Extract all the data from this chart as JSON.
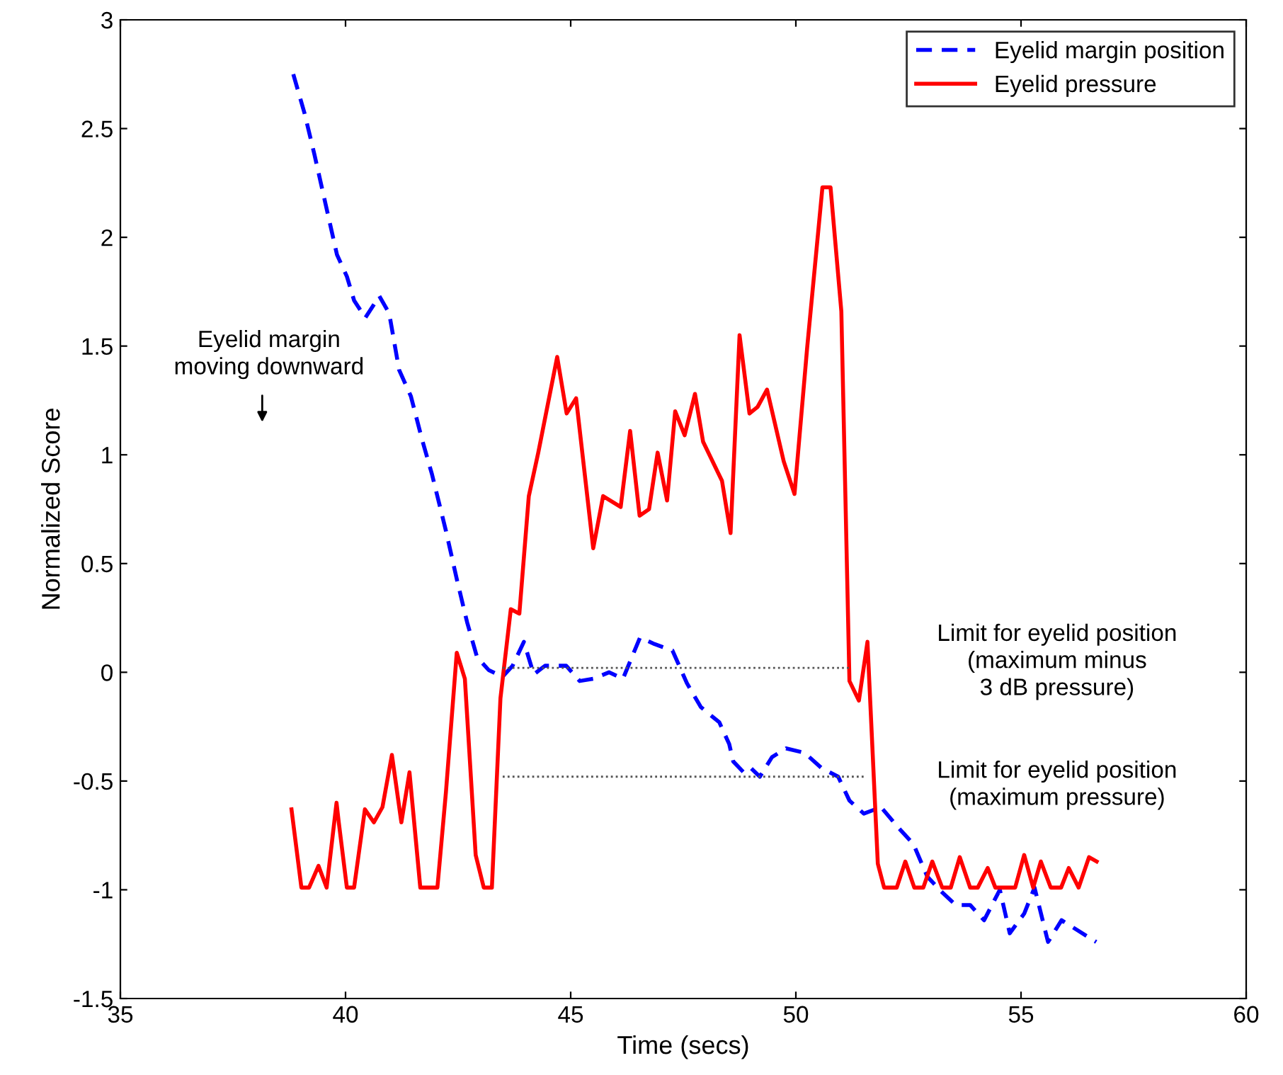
{
  "chart_data": {
    "type": "line",
    "xlabel": "Time (secs)",
    "ylabel": "Normalized Score",
    "xlim": [
      35,
      60
    ],
    "xticks": [
      35,
      40,
      45,
      50,
      55,
      60
    ],
    "ylim": [
      -1.5,
      3
    ],
    "yticks": [
      -1.5,
      -1,
      -0.5,
      0,
      0.5,
      1,
      1.5,
      2,
      2.5,
      3
    ],
    "grid": false,
    "legend": "top right",
    "marker": "none",
    "series": [
      {
        "name": "Eyelid margin position",
        "color": "#0000ff",
        "line_style": "dashed",
        "x": [
          38.84,
          39.09,
          39.31,
          39.56,
          39.81,
          40.03,
          40.19,
          40.44,
          40.75,
          40.97,
          41.19,
          41.45,
          41.7,
          41.92,
          42.23,
          42.48,
          42.7,
          42.92,
          43.18,
          43.49,
          43.71,
          43.96,
          44.18,
          44.43,
          44.9,
          45.2,
          45.5,
          45.85,
          46.16,
          46.54,
          46.86,
          47.26,
          47.58,
          47.89,
          48.3,
          48.52,
          48.61,
          48.84,
          49.0,
          49.2,
          49.47,
          49.78,
          50.19,
          50.57,
          50.94,
          51.19,
          51.51,
          51.89,
          52.3,
          52.61,
          52.92,
          53.24,
          53.55,
          53.87,
          54.18,
          54.53,
          54.75,
          55.07,
          55.3,
          55.6,
          55.9,
          56.67
        ],
        "values": [
          2.75,
          2.57,
          2.38,
          2.15,
          1.92,
          1.82,
          1.71,
          1.63,
          1.73,
          1.65,
          1.39,
          1.27,
          1.07,
          0.91,
          0.65,
          0.42,
          0.23,
          0.07,
          0.01,
          -0.02,
          0.03,
          0.14,
          -0.01,
          0.03,
          0.03,
          -0.04,
          -0.03,
          0.0,
          -0.03,
          0.16,
          0.13,
          0.1,
          -0.05,
          -0.16,
          -0.23,
          -0.33,
          -0.41,
          -0.46,
          -0.44,
          -0.48,
          -0.39,
          -0.35,
          -0.37,
          -0.44,
          -0.48,
          -0.59,
          -0.65,
          -0.62,
          -0.72,
          -0.79,
          -0.94,
          -1.01,
          -1.07,
          -1.07,
          -1.14,
          -1.0,
          -1.2,
          -1.11,
          -0.99,
          -1.24,
          -1.14,
          -1.24
        ]
      },
      {
        "name": "Eyelid pressure",
        "color": "#ff0000",
        "line_style": "solid",
        "x": [
          38.8,
          39.02,
          39.19,
          39.4,
          39.58,
          39.8,
          39.85,
          40.03,
          40.19,
          40.43,
          40.63,
          40.82,
          41.03,
          41.24,
          41.42,
          41.66,
          42.04,
          42.23,
          42.47,
          42.65,
          42.89,
          43.07,
          43.25,
          43.44,
          43.67,
          43.86,
          44.07,
          44.28,
          44.7,
          44.91,
          45.12,
          45.5,
          45.72,
          46.11,
          46.32,
          46.53,
          46.74,
          46.93,
          47.14,
          47.32,
          47.53,
          47.76,
          47.94,
          48.36,
          48.55,
          48.75,
          48.97,
          49.15,
          49.36,
          49.73,
          49.97,
          50.25,
          50.59,
          50.77,
          51.01,
          51.19,
          51.4,
          51.59,
          51.82,
          51.96,
          52.24,
          52.43,
          52.63,
          52.83,
          53.03,
          53.25,
          53.44,
          53.64,
          53.87,
          54.04,
          54.26,
          54.43,
          54.87,
          55.07,
          55.27,
          55.44,
          55.66,
          55.89,
          56.06,
          56.28,
          56.51,
          56.68
        ],
        "values": [
          -0.63,
          -0.99,
          -0.99,
          -0.89,
          -0.99,
          -0.6,
          -0.69,
          -0.99,
          -0.99,
          -0.63,
          -0.69,
          -0.62,
          -0.38,
          -0.69,
          -0.46,
          -0.99,
          -0.99,
          -0.55,
          0.09,
          -0.03,
          -0.84,
          -0.99,
          -0.99,
          -0.12,
          0.29,
          0.27,
          0.81,
          1.01,
          1.45,
          1.19,
          1.26,
          0.57,
          0.81,
          0.76,
          1.11,
          0.72,
          0.75,
          1.01,
          0.79,
          1.2,
          1.09,
          1.28,
          1.06,
          0.88,
          0.64,
          1.55,
          1.19,
          1.22,
          1.3,
          0.97,
          0.82,
          1.49,
          2.23,
          2.23,
          1.66,
          -0.04,
          -0.13,
          0.14,
          -0.88,
          -0.99,
          -0.99,
          -0.87,
          -0.99,
          -0.99,
          -0.87,
          -0.99,
          -0.99,
          -0.85,
          -0.99,
          -0.99,
          -0.9,
          -0.99,
          -0.99,
          -0.84,
          -0.99,
          -0.87,
          -0.99,
          -0.99,
          -0.9,
          -0.99,
          -0.85,
          -0.87
        ]
      },
      {
        "color": "#555555",
        "line_style": "dotted",
        "x": [
          43.49,
          51.19
        ],
        "values": [
          0.02,
          0.02
        ]
      },
      {
        "color": "#555555",
        "line_style": "dotted",
        "x": [
          43.49,
          51.57
        ],
        "values": [
          -0.48,
          -0.48
        ]
      }
    ],
    "annotations": [
      "Eyelid margin\nmoving downward",
      "Limit for eyelid position\n(maximum minus\n3 dB pressure)",
      "Limit for eyelid position\n(maximum pressure)"
    ]
  }
}
